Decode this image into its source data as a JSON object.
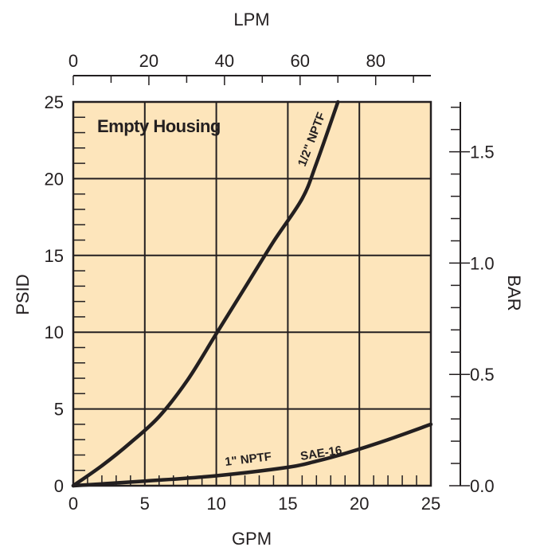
{
  "chart_data": {
    "type": "line",
    "title": "Empty Housing",
    "xlabel": "GPM",
    "ylabel": "PSID",
    "x2label": "LPM",
    "y2label": "BAR",
    "xlim": [
      0,
      25
    ],
    "ylim": [
      0,
      25
    ],
    "x2lim": [
      0,
      94.6
    ],
    "y2lim": [
      0,
      1.724
    ],
    "x_ticks": [
      "0",
      "5",
      "10",
      "15",
      "20",
      "25"
    ],
    "y_ticks": [
      "0",
      "5",
      "10",
      "15",
      "20",
      "25"
    ],
    "x2_ticks": [
      "0",
      "20",
      "40",
      "60",
      "80"
    ],
    "y2_ticks": [
      "0.0",
      "0.5",
      "1.0",
      "1.5"
    ],
    "grid": true,
    "background_color": "#fde5bb",
    "line_color": "#231f20",
    "series": [
      {
        "name": "1/2\" NPTF",
        "x": [
          0,
          2,
          4,
          6,
          8,
          10,
          12,
          14,
          16,
          17,
          18.5
        ],
        "y": [
          0,
          1.3,
          2.8,
          4.5,
          6.9,
          9.9,
          12.9,
          15.9,
          18.7,
          21.0,
          25.0
        ]
      },
      {
        "name": "1\" NPTF",
        "label2": "SAE-16",
        "x": [
          0,
          5,
          10,
          15,
          17,
          19,
          22,
          25
        ],
        "y": [
          0,
          0.3,
          0.65,
          1.2,
          1.6,
          2.1,
          3.0,
          4.0
        ]
      }
    ]
  }
}
